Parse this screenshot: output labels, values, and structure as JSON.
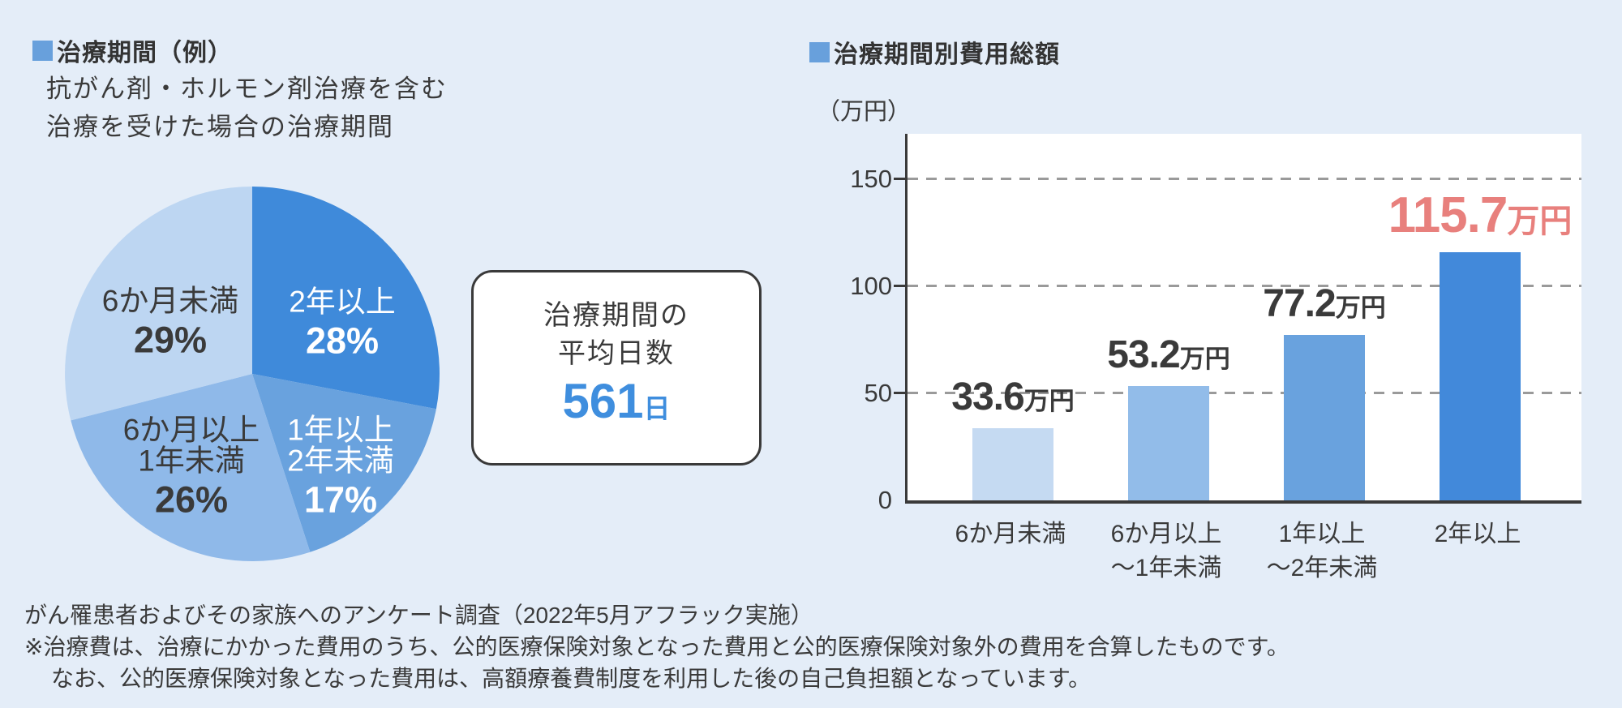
{
  "page": {
    "background_color": "#e4edf8",
    "accent_square_color": "#68a0dc",
    "text_color": "#3a3a3a"
  },
  "left_panel": {
    "title": "治療期間（例）",
    "subtitle_line1": "抗がん剤・ホルモン剤治療を含む",
    "subtitle_line2": "治療を受けた場合の治療期間",
    "average_box": {
      "line1": "治療期間の",
      "line2": "平均日数",
      "value": "561",
      "unit": "日",
      "value_color": "#3f8ede"
    }
  },
  "right_panel": {
    "title": "治療期間別費用総額",
    "axis_unit_label": "（万円）"
  },
  "footer": {
    "lines": [
      "がん罹患者およびその家族へのアンケート調査（2022年5月アフラック実施）",
      "※治療費は、治療にかかった費用のうち、公的医療保険対象となった費用と公的医療保険対象外の費用を合算したものです。",
      "なお、公的医療保険対象となった費用は、高額療養費制度を利用した後の自己負担額となっています。"
    ]
  },
  "chart_data": [
    {
      "type": "pie",
      "title": "治療期間（例）",
      "start_angle_deg": 0,
      "direction": "clockwise",
      "slices": [
        {
          "label": "2年以上",
          "label_lines": [
            "2年以上"
          ],
          "value_pct": 28,
          "color": "#3f8ada",
          "text_color": "#ffffff"
        },
        {
          "label": "1年以上2年未満",
          "label_lines": [
            "1年以上",
            "2年未満"
          ],
          "value_pct": 17,
          "color": "#69a2de",
          "text_color": "#ffffff"
        },
        {
          "label": "6か月以上1年未満",
          "label_lines": [
            "6か月以上",
            "1年未満"
          ],
          "value_pct": 26,
          "color": "#8fb9e9",
          "text_color": "#3a3a3a"
        },
        {
          "label": "6か月未満",
          "label_lines": [
            "6か月未満"
          ],
          "value_pct": 29,
          "color": "#bdd6f2",
          "text_color": "#3a3a3a"
        }
      ]
    },
    {
      "type": "bar",
      "title": "治療期間別費用総額",
      "unit": "万円",
      "ylabel": "（万円）",
      "categories": [
        "6か月未満",
        "6か月以上～1年未満",
        "1年以上～2年未満",
        "2年以上"
      ],
      "category_lines": [
        [
          "6か月未満"
        ],
        [
          "6か月以上",
          "～1年未満"
        ],
        [
          "1年以上",
          "～2年未満"
        ],
        [
          "2年以上"
        ]
      ],
      "values": [
        33.6,
        53.2,
        77.2,
        115.7
      ],
      "value_labels": [
        "33.6",
        "53.2",
        "77.2",
        "115.7"
      ],
      "bar_colors": [
        "#c5daf2",
        "#92bce9",
        "#69a2de",
        "#4289da"
      ],
      "label_colors": [
        "#3a3a3a",
        "#3a3a3a",
        "#3a3a3a",
        "#e8807d"
      ],
      "emphasized_index": 3,
      "ylim": [
        0,
        171
      ],
      "yticks": [
        0,
        50,
        100,
        150
      ],
      "grid": "horizontal dashed at 50, 100, 150",
      "legend": "none"
    }
  ]
}
